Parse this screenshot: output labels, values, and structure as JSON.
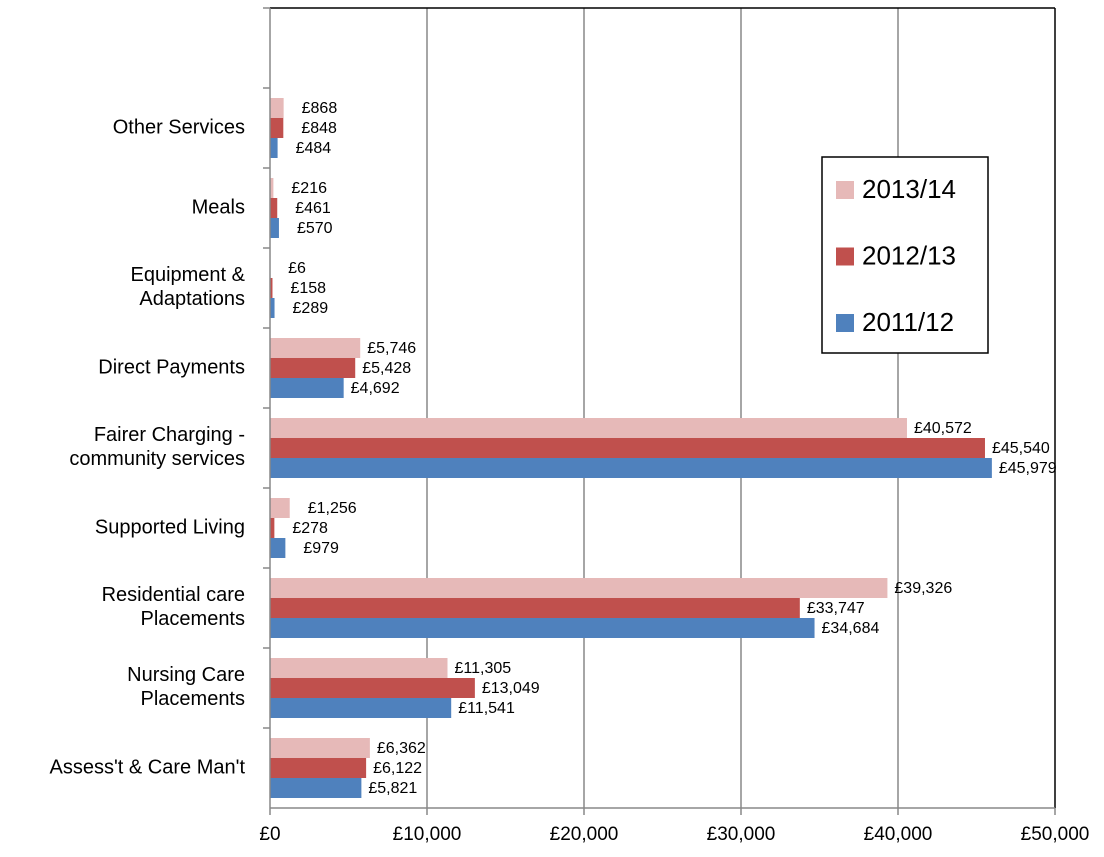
{
  "chart_data": {
    "type": "bar",
    "orientation": "horizontal",
    "categories": [
      "Assess't & Care Man't",
      "Nursing Care\nPlacements",
      "Residential care\nPlacements",
      "Supported Living",
      "Fairer Charging -\ncommunity services",
      "Direct Payments",
      "Equipment &\nAdaptations",
      "Meals",
      "Other Services",
      null
    ],
    "series": [
      {
        "name": "2013/14",
        "color": "#e6b9b8",
        "values": [
          6362,
          11305,
          39326,
          1256,
          40572,
          5746,
          6,
          216,
          868,
          null
        ],
        "value_labels": [
          "£6,362",
          "£11,305",
          "£39,326",
          "£1,256",
          "£40,572",
          "£5,746",
          "£6",
          "£216",
          "£868",
          null
        ]
      },
      {
        "name": "2012/13",
        "color": "#c0504d",
        "values": [
          6122,
          13049,
          33747,
          278,
          45540,
          5428,
          158,
          461,
          848,
          null
        ],
        "value_labels": [
          "£6,122",
          "£13,049",
          "£33,747",
          "£278",
          "£45,540",
          "£5,428",
          "£158",
          "£461",
          "£848",
          null
        ]
      },
      {
        "name": "2011/12",
        "color": "#4f81bd",
        "values": [
          5821,
          11541,
          34684,
          979,
          45979,
          4692,
          289,
          570,
          484,
          null
        ],
        "value_labels": [
          "£5,821",
          "£11,541",
          "£34,684",
          "£979",
          "£45,979",
          "£4,692",
          "£289",
          "£570",
          "£484",
          null
        ]
      }
    ],
    "xlim": [
      0,
      50000
    ],
    "xticks": [
      {
        "value": 0,
        "label": "£0"
      },
      {
        "value": 10000,
        "label": "£10,000"
      },
      {
        "value": 20000,
        "label": "£20,000"
      },
      {
        "value": 30000,
        "label": "£30,000"
      },
      {
        "value": 40000,
        "label": "£40,000"
      },
      {
        "value": 50000,
        "label": "£50,000"
      }
    ],
    "grid": true,
    "legend": "right"
  }
}
